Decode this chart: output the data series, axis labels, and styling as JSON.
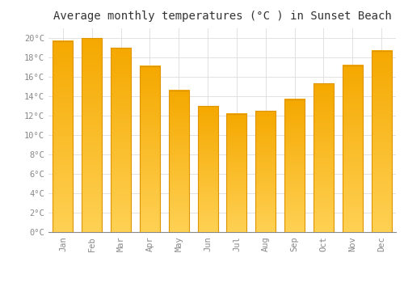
{
  "title": "Average monthly temperatures (°C ) in Sunset Beach",
  "months": [
    "Jan",
    "Feb",
    "Mar",
    "Apr",
    "May",
    "Jun",
    "Jul",
    "Aug",
    "Sep",
    "Oct",
    "Nov",
    "Dec"
  ],
  "values": [
    19.7,
    20.0,
    19.0,
    17.1,
    14.6,
    13.0,
    12.2,
    12.5,
    13.7,
    15.3,
    17.2,
    18.7
  ],
  "bar_color_top": "#F5A800",
  "bar_color_bottom": "#FFCC55",
  "bar_edge_color": "#E09500",
  "background_color": "#FFFFFF",
  "grid_color": "#DDDDDD",
  "ylim": [
    0,
    21
  ],
  "yticks": [
    0,
    2,
    4,
    6,
    8,
    10,
    12,
    14,
    16,
    18,
    20
  ],
  "title_fontsize": 10,
  "tick_fontsize": 7.5,
  "tick_color": "#888888",
  "title_color": "#333333",
  "font_family": "monospace"
}
